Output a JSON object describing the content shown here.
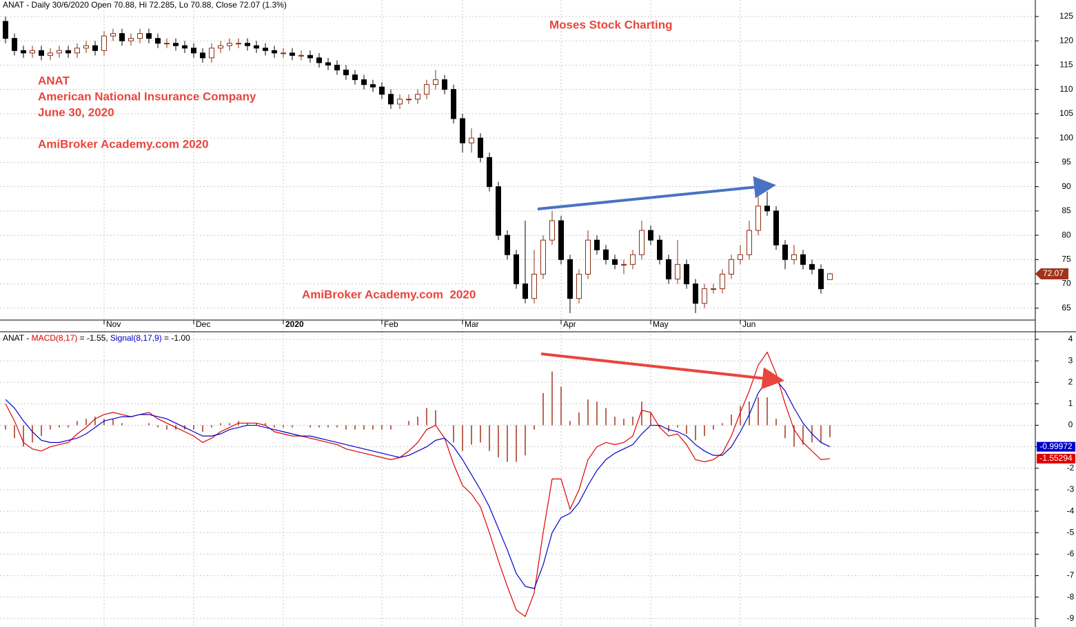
{
  "chart_data": [
    {
      "type": "candlestick",
      "title": "ANAT - Daily 30/6/2020 Open 70.88, Hi 72.285, Lo 70.88, Close 72.07 (1.3%)",
      "annotations": [
        "Moses Stock Charting",
        "ANAT",
        "American National Insurance Company",
        "June 30, 2020",
        "AmiBroker Academy.com 2020",
        "AmiBroker Academy.com  2020"
      ],
      "categories": [
        null,
        null,
        null,
        null,
        null,
        null,
        null,
        null,
        null,
        null,
        null,
        "Nov",
        null,
        null,
        null,
        null,
        null,
        null,
        null,
        null,
        null,
        "Dec",
        null,
        null,
        null,
        null,
        null,
        null,
        null,
        null,
        null,
        "2020",
        null,
        null,
        null,
        null,
        null,
        null,
        null,
        null,
        null,
        null,
        "Feb",
        null,
        null,
        null,
        null,
        null,
        null,
        null,
        null,
        "Mar",
        null,
        null,
        null,
        null,
        null,
        null,
        null,
        null,
        null,
        null,
        "Apr",
        null,
        null,
        null,
        null,
        null,
        null,
        null,
        null,
        null,
        "May",
        null,
        null,
        null,
        null,
        null,
        null,
        null,
        null,
        null,
        "Jun",
        null,
        null,
        null,
        null,
        null,
        null,
        null,
        null,
        null,
        null
      ],
      "open": [
        124,
        120.5,
        118,
        117.5,
        118,
        117,
        117.5,
        118,
        117.5,
        118.5,
        119,
        118,
        121,
        121.5,
        120,
        120.5,
        121.5,
        120.5,
        119.5,
        119.5,
        119,
        118.5,
        117.5,
        116.5,
        118.5,
        119,
        119.5,
        119.5,
        119,
        118.5,
        118,
        117.5,
        117.5,
        117,
        117,
        116.5,
        115.5,
        115,
        114,
        113,
        112,
        111,
        110.5,
        109,
        107,
        108,
        108,
        109,
        111,
        112,
        110,
        104,
        99,
        100,
        96,
        90,
        80,
        76,
        70,
        67,
        72,
        79,
        83,
        75,
        67,
        72,
        79,
        77,
        75,
        74,
        74,
        76,
        81,
        79,
        75,
        71,
        74,
        70,
        66,
        69,
        69,
        72,
        75,
        76,
        81,
        86,
        85,
        78,
        75,
        76,
        74,
        73,
        70.88
      ],
      "high": [
        125,
        121.5,
        119,
        119,
        119,
        118.5,
        119,
        119,
        119.5,
        120,
        120,
        122,
        122.5,
        122.5,
        121.5,
        122.5,
        122.5,
        121.5,
        120.5,
        120.5,
        120,
        119.5,
        118.5,
        119.5,
        120,
        120.5,
        120.5,
        120.5,
        120,
        119.5,
        119,
        118.5,
        118.5,
        118,
        118,
        117.5,
        116.5,
        116,
        115,
        114,
        113,
        112,
        111.5,
        110,
        109,
        109,
        110,
        112,
        114,
        113,
        111,
        105,
        102,
        101,
        97,
        91,
        81,
        77,
        83,
        77,
        80,
        85,
        84,
        76,
        73,
        81,
        80,
        78,
        76,
        75,
        77,
        83,
        82,
        80,
        76,
        79,
        75,
        71,
        70,
        70,
        73,
        76,
        78,
        83,
        88,
        89,
        86,
        79,
        78,
        77,
        75,
        74,
        72.285
      ],
      "low": [
        119.5,
        117,
        116.5,
        116.5,
        116,
        116,
        116.5,
        116.5,
        116.5,
        117.5,
        117,
        117,
        120,
        119,
        119,
        119.5,
        119.5,
        118.5,
        118.5,
        118,
        117.5,
        116.5,
        115.5,
        115.5,
        117.5,
        118,
        118.5,
        118,
        117.5,
        117,
        116.5,
        116.5,
        116,
        116,
        115.5,
        114.5,
        114,
        113,
        112,
        111,
        110,
        109.5,
        108,
        106,
        106,
        107,
        107,
        108,
        110,
        109,
        103,
        97,
        97,
        95,
        89,
        79,
        75,
        69,
        66,
        66,
        71,
        78,
        74,
        64,
        66,
        71,
        76,
        74,
        73,
        72,
        73,
        75,
        78,
        74,
        70,
        70,
        69,
        64,
        65,
        68,
        68,
        71,
        74,
        75,
        80,
        84,
        77,
        73,
        74,
        73,
        72,
        68,
        70.88
      ],
      "close": [
        120.5,
        118,
        117.5,
        118,
        117,
        117.5,
        118,
        117.5,
        118.5,
        119,
        118,
        121,
        121.5,
        120,
        120.5,
        121.5,
        120.5,
        119.5,
        119.5,
        119,
        118.5,
        117.5,
        116.5,
        118.5,
        119,
        119.5,
        119.5,
        119,
        118.5,
        118,
        117.5,
        117.5,
        117,
        117,
        116.5,
        115.5,
        115,
        114,
        113,
        112,
        111,
        110.5,
        109,
        107,
        108,
        108,
        109,
        111,
        112,
        110,
        104,
        99,
        100,
        96,
        90,
        80,
        76,
        70,
        67,
        72,
        79,
        83,
        75,
        67,
        72,
        79,
        77,
        75,
        74,
        74,
        76,
        81,
        79,
        75,
        71,
        74,
        70,
        66,
        69,
        69,
        72,
        75,
        76,
        81,
        86,
        85,
        78,
        75,
        76,
        74,
        73,
        69,
        72.07
      ],
      "up_color": "#ffffff",
      "down_color": "#000000",
      "outline_color": "#8b2c10",
      "tag_color": "#a0341a",
      "ylim": [
        62.7,
        128.4
      ],
      "yticks": [
        65,
        70,
        75,
        80,
        85,
        90,
        95,
        100,
        105,
        110,
        115,
        120,
        125
      ],
      "grid": true
    },
    {
      "type": "macd",
      "title_prefix": "ANAT -",
      "series": [
        {
          "name": "MACD(8,17)",
          "header_value": "= -1.55,",
          "color": "#e00000",
          "values": [
            1.0,
            0.2,
            -0.8,
            -1.1,
            -1.2,
            -1.0,
            -0.9,
            -0.8,
            -0.4,
            -0.1,
            0.3,
            0.5,
            0.6,
            0.5,
            0.4,
            0.5,
            0.6,
            0.3,
            0.1,
            -0.1,
            -0.3,
            -0.5,
            -0.8,
            -0.6,
            -0.3,
            -0.1,
            0.1,
            0.1,
            0.1,
            0.0,
            -0.3,
            -0.4,
            -0.5,
            -0.5,
            -0.6,
            -0.7,
            -0.8,
            -0.9,
            -1.1,
            -1.2,
            -1.3,
            -1.4,
            -1.5,
            -1.6,
            -1.5,
            -1.2,
            -0.8,
            -0.2,
            0.0,
            -0.6,
            -1.8,
            -2.8,
            -3.2,
            -3.8,
            -5.0,
            -6.3,
            -7.5,
            -8.6,
            -8.9,
            -7.8,
            -5.0,
            -2.5,
            -2.5,
            -3.9,
            -3.0,
            -1.6,
            -1.0,
            -0.8,
            -0.9,
            -0.8,
            -0.5,
            0.7,
            0.6,
            -0.1,
            -0.5,
            -0.4,
            -0.9,
            -1.6,
            -1.7,
            -1.6,
            -1.3,
            -0.5,
            0.6,
            1.6,
            2.8,
            3.4,
            2.4,
            1.0,
            -0.2,
            -0.8,
            -1.2,
            -1.6,
            -1.55294
          ]
        },
        {
          "name": "Signal(8,17,9)",
          "header_value": "= -1.00",
          "color": "#0000cc",
          "values": [
            1.2,
            0.8,
            0.2,
            -0.3,
            -0.7,
            -0.8,
            -0.8,
            -0.7,
            -0.6,
            -0.4,
            -0.1,
            0.2,
            0.3,
            0.4,
            0.4,
            0.5,
            0.5,
            0.4,
            0.3,
            0.1,
            -0.1,
            -0.3,
            -0.5,
            -0.5,
            -0.4,
            -0.2,
            -0.1,
            0.0,
            0.0,
            -0.1,
            -0.2,
            -0.3,
            -0.4,
            -0.5,
            -0.5,
            -0.6,
            -0.7,
            -0.8,
            -0.9,
            -1.0,
            -1.1,
            -1.2,
            -1.3,
            -1.4,
            -1.5,
            -1.4,
            -1.2,
            -1.0,
            -0.7,
            -0.6,
            -1.0,
            -1.6,
            -2.3,
            -3.0,
            -3.8,
            -4.8,
            -5.8,
            -6.9,
            -7.5,
            -7.6,
            -6.5,
            -5.0,
            -4.3,
            -4.1,
            -3.6,
            -2.8,
            -2.1,
            -1.6,
            -1.3,
            -1.1,
            -0.9,
            -0.4,
            0.0,
            0.0,
            -0.2,
            -0.3,
            -0.5,
            -0.9,
            -1.2,
            -1.4,
            -1.4,
            -1.0,
            -0.3,
            0.5,
            1.5,
            2.1,
            2.1,
            1.6,
            0.8,
            0.1,
            -0.4,
            -0.8,
            -0.99972
          ]
        }
      ],
      "histogram": {
        "color": "#a0341a",
        "values": [
          -0.2,
          -0.6,
          -1.0,
          -0.8,
          -0.5,
          -0.2,
          -0.1,
          -0.1,
          0.2,
          0.3,
          0.4,
          0.3,
          0.3,
          0.1,
          0.0,
          0.0,
          0.1,
          -0.1,
          -0.2,
          -0.2,
          -0.2,
          -0.2,
          -0.3,
          -0.1,
          0.1,
          0.1,
          0.2,
          0.1,
          0.1,
          0.1,
          -0.1,
          -0.1,
          -0.1,
          0.0,
          -0.1,
          -0.1,
          -0.1,
          -0.1,
          -0.2,
          -0.2,
          -0.2,
          -0.2,
          -0.2,
          -0.2,
          0.0,
          0.2,
          0.4,
          0.8,
          0.7,
          0.0,
          -0.8,
          -1.2,
          -0.9,
          -0.8,
          -1.2,
          -1.5,
          -1.7,
          -1.7,
          -1.4,
          -0.2,
          1.5,
          2.5,
          1.8,
          0.2,
          0.6,
          1.2,
          1.1,
          0.8,
          0.4,
          0.3,
          0.4,
          1.1,
          0.6,
          -0.1,
          -0.3,
          -0.1,
          -0.4,
          -0.7,
          -0.5,
          -0.2,
          0.1,
          0.5,
          0.9,
          1.1,
          1.3,
          1.3,
          0.3,
          -0.6,
          -1.0,
          -0.9,
          -0.8,
          -0.8,
          -0.55322
        ]
      },
      "ylim": [
        -9.39,
        4.32
      ],
      "yticks": [
        4,
        3,
        2,
        1,
        0,
        -1,
        -2,
        -3,
        -4,
        -5,
        -6,
        -7,
        -8,
        -9
      ],
      "grid": true
    }
  ]
}
